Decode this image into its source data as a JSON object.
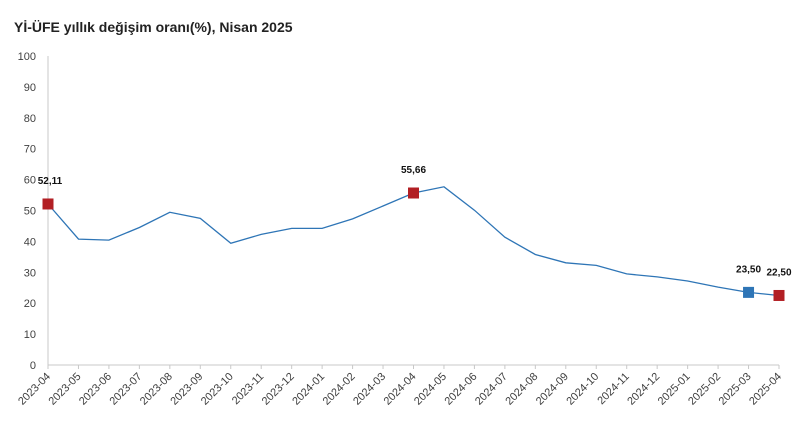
{
  "chart_data": {
    "type": "line",
    "title": "Yİ-ÜFE yıllık değişim oranı(%), Nisan 2025",
    "xlabel": "",
    "ylabel": "",
    "ylim": [
      0,
      100
    ],
    "yticks": [
      0,
      10,
      20,
      30,
      40,
      50,
      60,
      70,
      80,
      90,
      100
    ],
    "grid": false,
    "categories": [
      "2023-04",
      "2023-05",
      "2023-06",
      "2023-07",
      "2023-08",
      "2023-09",
      "2023-10",
      "2023-11",
      "2023-12",
      "2024-01",
      "2024-02",
      "2024-03",
      "2024-04",
      "2024-05",
      "2024-06",
      "2024-07",
      "2024-08",
      "2024-09",
      "2024-10",
      "2024-11",
      "2024-12",
      "2025-01",
      "2025-02",
      "2025-03",
      "2025-04"
    ],
    "series": [
      {
        "values": [
          52.11,
          40.76,
          40.42,
          44.5,
          49.41,
          47.44,
          39.37,
          42.25,
          44.22,
          44.2,
          47.29,
          51.47,
          55.66,
          57.68,
          50.09,
          41.37,
          35.75,
          33.09,
          32.24,
          29.47,
          28.52,
          27.2,
          25.21,
          23.5,
          22.5
        ],
        "color": "#2e75b6"
      }
    ],
    "highlights": [
      {
        "index": 0,
        "label": "52,11",
        "color": "#b21f24"
      },
      {
        "index": 12,
        "label": "55,66",
        "color": "#b21f24"
      },
      {
        "index": 23,
        "label": "23,50",
        "color": "#2e75b6"
      },
      {
        "index": 24,
        "label": "22,50",
        "color": "#b21f24"
      }
    ]
  }
}
